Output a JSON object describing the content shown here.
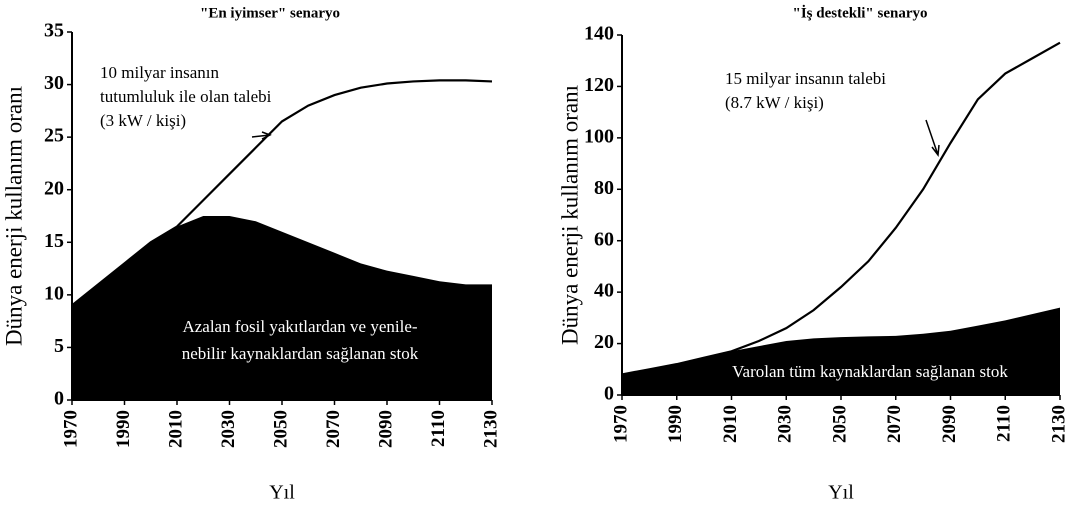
{
  "chart_data": [
    {
      "type": "area-line",
      "title": "\"En iyimser\" senaryo",
      "ylabel": "Dünya enerji kullanım oranı",
      "xlabel": "Yıl",
      "x": [
        1970,
        1980,
        1990,
        2000,
        2010,
        2020,
        2030,
        2040,
        2050,
        2060,
        2070,
        2080,
        2090,
        2100,
        2110,
        2120,
        2130
      ],
      "series": [
        {
          "kind": "area",
          "color": "#000000",
          "values": [
            9,
            11,
            13,
            15,
            16.5,
            17.5,
            17.5,
            17,
            16,
            15,
            14,
            13,
            12.3,
            11.8,
            11.3,
            11,
            11
          ]
        },
        {
          "kind": "line",
          "color": "#000000",
          "values": [
            9,
            11,
            13,
            15,
            16.5,
            19,
            21.5,
            24,
            26.5,
            28,
            29,
            29.7,
            30.1,
            30.3,
            30.4,
            30.4,
            30.3
          ]
        }
      ],
      "xlim": [
        1970,
        2130
      ],
      "xticks": [
        1970,
        1990,
        2010,
        2030,
        2050,
        2070,
        2090,
        2110,
        2130
      ],
      "ylim": [
        0,
        35
      ],
      "yticks": [
        0,
        5,
        10,
        15,
        20,
        25,
        30,
        35
      ],
      "annotations": [
        [
          "10 milyar insanın",
          "tutumluluk ile olan talebi",
          "(3 kW / kişi)"
        ],
        [
          "Azalan fosil yakıtlardan ve yenile-",
          "nebilir kaynaklardan sağlanan stok"
        ]
      ]
    },
    {
      "type": "area-line",
      "title": "\"İş destekli\" senaryo",
      "ylabel": "Dünya enerji kullanım oranı",
      "xlabel": "Yıl",
      "x": [
        1970,
        1980,
        1990,
        2000,
        2010,
        2020,
        2030,
        2040,
        2050,
        2060,
        2070,
        2080,
        2090,
        2100,
        2110,
        2120,
        2130
      ],
      "series": [
        {
          "kind": "area",
          "color": "#000000",
          "values": [
            8,
            10,
            12,
            14.5,
            17,
            19,
            21,
            22,
            22.5,
            22.8,
            23,
            23.8,
            25,
            27,
            29,
            31.5,
            34
          ]
        },
        {
          "kind": "line",
          "color": "#000000",
          "values": [
            8,
            10,
            12,
            14.5,
            17,
            21,
            26,
            33,
            42,
            52,
            65,
            80,
            98,
            115,
            125,
            131,
            137
          ]
        }
      ],
      "xlim": [
        1970,
        2130
      ],
      "xticks": [
        1970,
        1990,
        2010,
        2030,
        2050,
        2070,
        2090,
        2110,
        2130
      ],
      "ylim": [
        0,
        140
      ],
      "yticks": [
        0,
        20,
        40,
        60,
        80,
        100,
        120,
        140
      ],
      "annotations": [
        [
          "15 milyar insanın talebi",
          "(8.7 kW / kişi)"
        ],
        [
          "Varolan tüm kaynaklardan sağlanan stok"
        ]
      ]
    }
  ]
}
